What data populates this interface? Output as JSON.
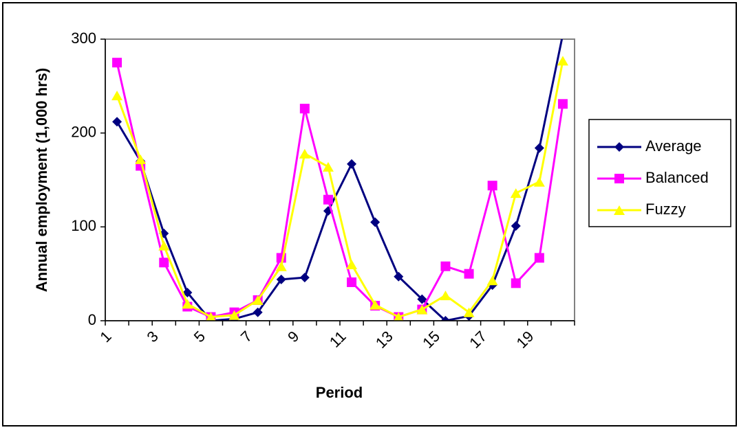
{
  "chart_data": {
    "type": "line",
    "y_label": "Annual employment (1,000 hrs)",
    "x_label": "Period",
    "categories": [
      "1",
      null,
      "3",
      null,
      "5",
      null,
      "7",
      null,
      "9",
      null,
      "11",
      null,
      "13",
      null,
      "15",
      null,
      "17",
      null,
      "19",
      null
    ],
    "series": [
      {
        "name": "Average",
        "color": "#000080",
        "marker": "diamond",
        "values": [
          212,
          170,
          93,
          30,
          0,
          2,
          9,
          44,
          46,
          117,
          167,
          105,
          47,
          23,
          0,
          5,
          38,
          101,
          184,
          305
        ]
      },
      {
        "name": "Balanced",
        "color": "#ff00ff",
        "marker": "square",
        "values": [
          275,
          165,
          62,
          15,
          4,
          9,
          22,
          67,
          226,
          129,
          41,
          16,
          4,
          12,
          58,
          50,
          144,
          40,
          67,
          231
        ]
      },
      {
        "name": "Fuzzy",
        "color": "#ffff00",
        "marker": "triangle",
        "values": [
          240,
          172,
          80,
          18,
          4,
          6,
          22,
          58,
          178,
          164,
          60,
          17,
          4,
          12,
          27,
          9,
          43,
          136,
          148,
          277
        ]
      }
    ],
    "ylim": [
      0,
      300
    ],
    "yticks": [
      0,
      100,
      200,
      300
    ],
    "legend": "right"
  }
}
